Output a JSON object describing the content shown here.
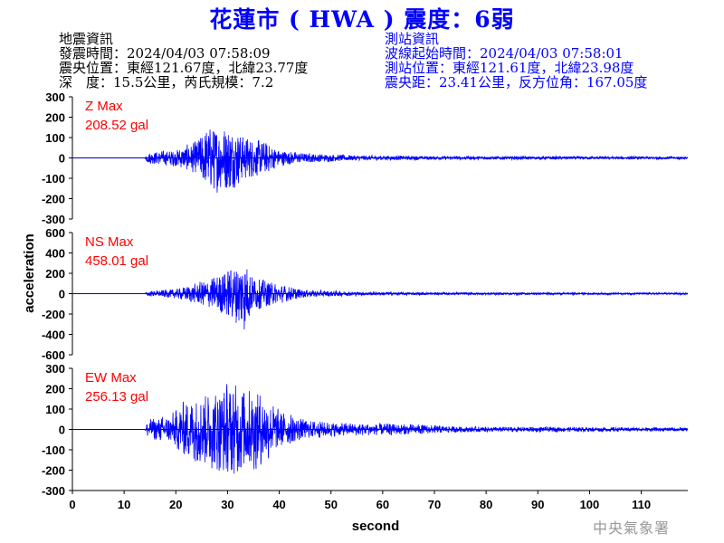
{
  "title": "花蓮市 ( HWA ) 震度：6弱",
  "earthquake_info": {
    "heading": "地震資訊",
    "origin_time": "發震時間：2024/04/03 07:58:09",
    "epicenter": "震央位置：東經121.67度，北緯23.77度",
    "depth_magnitude": "深　度：15.5公里，芮氏規模：7.2"
  },
  "station_info": {
    "heading": "測站資訊",
    "start_time": "波線起始時間：2024/04/03 07:58:01",
    "location": "測站位置：東經121.61度，北緯23.98度",
    "distance": "震央距：23.41公里，反方位角：167.05度"
  },
  "logo_text": "中央氣象署",
  "chart_data": {
    "type": "line",
    "xlabel": "second",
    "ylabel": "acceleration",
    "xlim": [
      0,
      119
    ],
    "xticks": [
      "0",
      "10",
      "20",
      "30",
      "40",
      "50",
      "60",
      "70",
      "80",
      "90",
      "100",
      "110"
    ],
    "line_color": "#0000ff",
    "label_color": "#ff0000",
    "panels": [
      {
        "name": "Z Max",
        "peak": "208.52 gal",
        "ylim": [
          -300,
          300
        ],
        "yticks": [
          "300",
          "200",
          "100",
          "0",
          "-100",
          "-200",
          "-300"
        ],
        "envelope": [
          [
            0,
            0
          ],
          [
            14,
            0
          ],
          [
            14.5,
            30
          ],
          [
            20,
            45
          ],
          [
            24,
            90
          ],
          [
            26,
            170
          ],
          [
            30,
            180
          ],
          [
            33,
            120
          ],
          [
            37,
            90
          ],
          [
            40,
            45
          ],
          [
            45,
            25
          ],
          [
            55,
            14
          ],
          [
            70,
            10
          ],
          [
            119,
            8
          ]
        ]
      },
      {
        "name": "NS Max",
        "peak": "458.01 gal",
        "ylim": [
          -600,
          600
        ],
        "yticks": [
          "600",
          "400",
          "200",
          "0",
          "-200",
          "-400",
          "-600"
        ],
        "envelope": [
          [
            0,
            0
          ],
          [
            14,
            0
          ],
          [
            14.5,
            25
          ],
          [
            20,
            50
          ],
          [
            24,
            110
          ],
          [
            27,
            170
          ],
          [
            32,
            330
          ],
          [
            33,
            440
          ],
          [
            35,
            180
          ],
          [
            40,
            100
          ],
          [
            45,
            40
          ],
          [
            55,
            22
          ],
          [
            70,
            15
          ],
          [
            119,
            10
          ]
        ]
      },
      {
        "name": "EW Max",
        "peak": "256.13 gal",
        "ylim": [
          -300,
          300
        ],
        "yticks": [
          "300",
          "200",
          "100",
          "0",
          "-100",
          "-200",
          "-300"
        ],
        "envelope": [
          [
            0,
            0
          ],
          [
            14,
            0
          ],
          [
            14.5,
            50
          ],
          [
            19,
            80
          ],
          [
            22,
            160
          ],
          [
            26,
            200
          ],
          [
            30,
            250
          ],
          [
            34,
            230
          ],
          [
            37,
            190
          ],
          [
            40,
            100
          ],
          [
            45,
            50
          ],
          [
            52,
            35
          ],
          [
            66,
            28
          ],
          [
            75,
            15
          ],
          [
            119,
            10
          ]
        ]
      }
    ]
  }
}
